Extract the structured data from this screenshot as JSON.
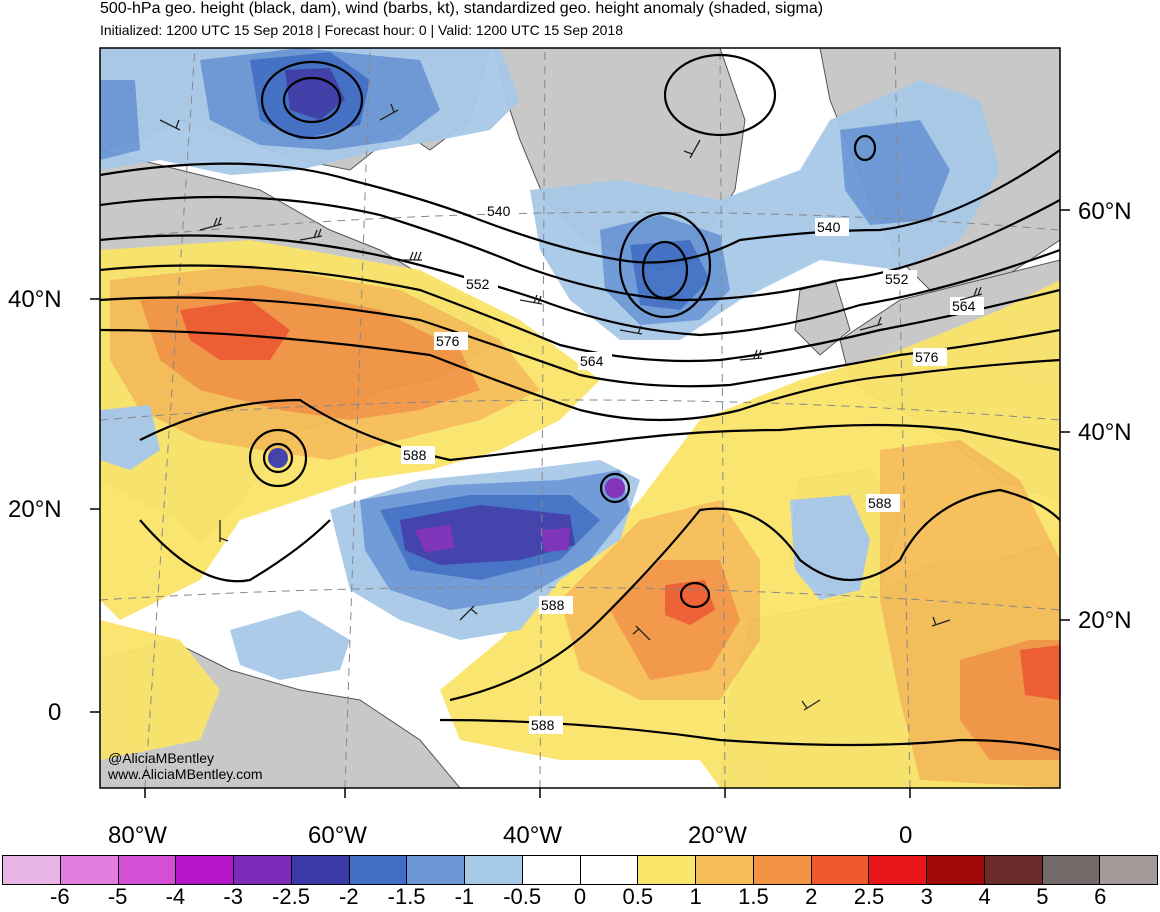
{
  "title": "500-hPa geo. height (black, dam), wind (barbs, kt), standardized geo. height anomaly (shaded, sigma)",
  "subtitle": "Initialized: 1200 UTC 15 Sep 2018 | Forecast hour: 0 | Valid: 1200 UTC 15 Sep 2018",
  "credits": {
    "handle": "@AliciaMBentley",
    "website": "www.AliciaMBentley.com"
  },
  "left_lat_labels": [
    "40°N",
    "20°N",
    "0"
  ],
  "right_lat_labels": [
    "60°N",
    "40°N",
    "20°N"
  ],
  "lon_labels": [
    "80°W",
    "60°W",
    "40°W",
    "20°W",
    "0"
  ],
  "contour_labels": [
    "540",
    "552",
    "576",
    "564",
    "588",
    "588",
    "588",
    "588",
    "540",
    "552",
    "564",
    "576",
    "588"
  ],
  "legend": {
    "labels": [
      "-6",
      "-5",
      "-4",
      "-3",
      "-2.5",
      "-2",
      "-1.5",
      "-1",
      "-0.5",
      "0",
      "0.5",
      "1",
      "1.5",
      "2",
      "2.5",
      "3",
      "4",
      "5",
      "6"
    ],
    "colors": [
      "#e8b4e6",
      "#e07fdf",
      "#d24fd6",
      "#b515c8",
      "#7b2bb8",
      "#3a3aa8",
      "#3f6ec4",
      "#6b97d6",
      "#a7c9e8",
      "#ffffff",
      "#ffffff",
      "#fbe46a",
      "#f5bd55",
      "#f29443",
      "#ee5a2e",
      "#e8161a",
      "#a00a0a",
      "#6b2a2a",
      "#746a6a",
      "#a39a9a"
    ]
  }
}
